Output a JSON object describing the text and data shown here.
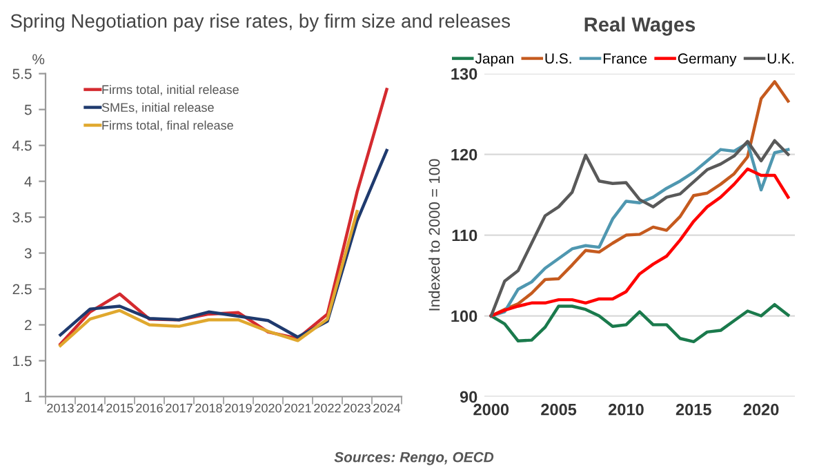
{
  "chart_data": [
    {
      "type": "line",
      "title": "Spring Negotiation pay rise rates, by firm size and releases",
      "ylabel": "%",
      "categories": [
        "2013",
        "2014",
        "2015",
        "2016",
        "2017",
        "2018",
        "2019",
        "2020",
        "2021",
        "2022",
        "2023",
        "2024"
      ],
      "series": [
        {
          "name": "Firms total, initial release",
          "color": "#d42a2f",
          "values": [
            1.73,
            2.18,
            2.43,
            2.08,
            2.07,
            2.15,
            2.17,
            1.9,
            1.81,
            2.15,
            3.85,
            5.28
          ]
        },
        {
          "name": "SMEs, initial release",
          "color": "#1f3a6e",
          "values": [
            1.86,
            2.22,
            2.26,
            2.09,
            2.07,
            2.18,
            2.12,
            2.06,
            1.83,
            2.05,
            3.45,
            4.43
          ]
        },
        {
          "name": "Firms total, final release",
          "color": "#e0a82e",
          "values": [
            1.71,
            2.08,
            2.2,
            2.0,
            1.98,
            2.07,
            2.07,
            1.91,
            1.78,
            2.08,
            3.58,
            null
          ]
        }
      ],
      "ylim": [
        1,
        5.5
      ],
      "yticks": [
        1,
        1.5,
        2,
        2.5,
        3,
        3.5,
        4,
        4.5,
        5,
        5.5
      ],
      "grid": false,
      "legend": "top left",
      "line_style": "solid"
    },
    {
      "type": "line",
      "title": "Real Wages",
      "ylabel": "Indexed to 2000 = 100",
      "x": [
        2000,
        2001,
        2002,
        2003,
        2004,
        2005,
        2006,
        2007,
        2008,
        2009,
        2010,
        2011,
        2012,
        2013,
        2014,
        2015,
        2016,
        2017,
        2018,
        2019,
        2020,
        2021,
        2022
      ],
      "series": [
        {
          "name": "Japan",
          "color": "#1a7a4c",
          "values": [
            100,
            99.0,
            96.9,
            97.0,
            98.6,
            101.2,
            101.2,
            100.8,
            100.0,
            98.7,
            98.9,
            100.5,
            98.9,
            98.9,
            97.2,
            96.8,
            98.0,
            98.2,
            99.4,
            100.6,
            100.0,
            101.4,
            100.1
          ]
        },
        {
          "name": "U.S.",
          "color": "#c55a1e",
          "values": [
            100,
            100.8,
            101.5,
            102.8,
            104.5,
            104.6,
            106.3,
            108.1,
            107.9,
            109.0,
            110.0,
            110.1,
            111.0,
            110.6,
            112.3,
            114.9,
            115.2,
            116.3,
            117.6,
            119.7,
            126.9,
            129.0,
            126.6
          ]
        },
        {
          "name": "France",
          "color": "#4f97b0",
          "values": [
            100,
            100.5,
            103.3,
            104.2,
            105.9,
            107.1,
            108.3,
            108.7,
            108.5,
            112.0,
            114.2,
            114.0,
            114.7,
            115.8,
            116.7,
            117.8,
            119.2,
            120.6,
            120.4,
            121.4,
            115.6,
            120.2,
            120.6
          ]
        },
        {
          "name": "Germany",
          "color": "#ff0000",
          "values": [
            100,
            100.7,
            101.2,
            101.6,
            101.6,
            102.0,
            102.0,
            101.6,
            102.1,
            102.1,
            103.0,
            105.2,
            106.4,
            107.4,
            109.4,
            111.7,
            113.5,
            114.7,
            116.3,
            118.2,
            117.4,
            117.4,
            114.7
          ]
        },
        {
          "name": "U.K.",
          "color": "#595959",
          "values": [
            100,
            104.3,
            105.6,
            109.0,
            112.4,
            113.5,
            115.3,
            119.9,
            116.7,
            116.4,
            116.5,
            114.4,
            113.5,
            114.7,
            115.1,
            116.6,
            118.1,
            118.8,
            119.8,
            121.6,
            119.2,
            121.7,
            120.0
          ]
        }
      ],
      "xlim": [
        1999.5,
        2022.5
      ],
      "xticks": [
        2000,
        2005,
        2010,
        2015,
        2020
      ],
      "ylim": [
        90,
        130
      ],
      "yticks": [
        90,
        100,
        110,
        120,
        130
      ],
      "grid": "y",
      "legend": "top",
      "line_style": "solid",
      "annotations": [
        "Sources: Rengo, OECD"
      ]
    }
  ]
}
